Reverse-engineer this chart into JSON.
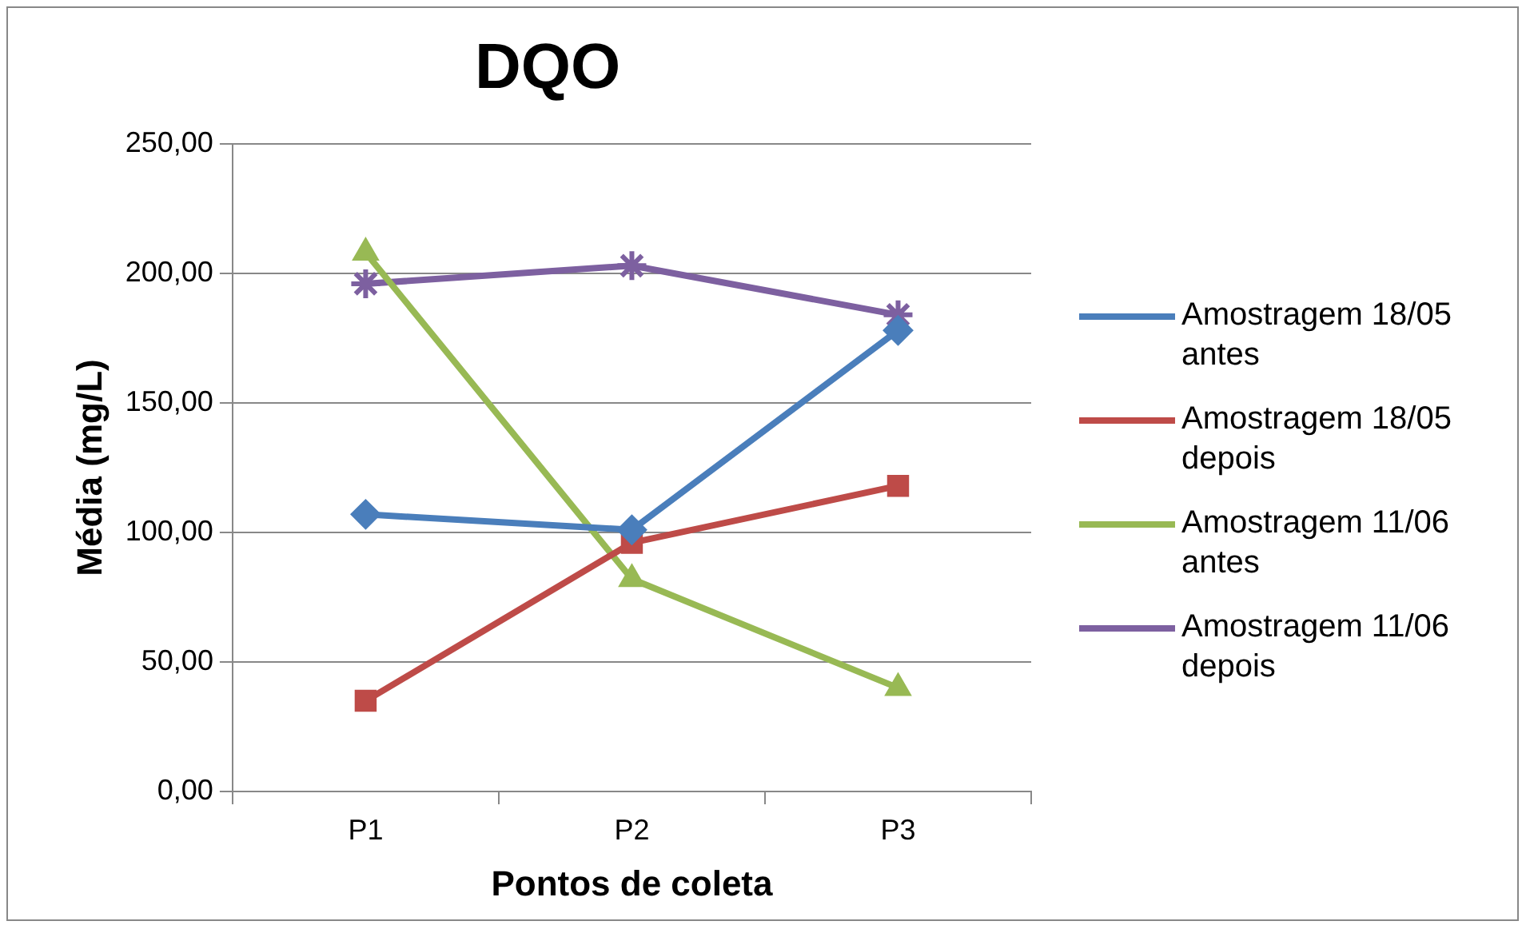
{
  "chart_data": {
    "type": "line",
    "title": "DQO",
    "xlabel": "Pontos de coleta",
    "ylabel": "Média (mg/L)",
    "categories": [
      "P1",
      "P2",
      "P3"
    ],
    "series": [
      {
        "name": "Amostragem 18/05 antes",
        "color": "#4a7ebb",
        "marker": "diamond",
        "values": [
          107,
          101,
          178
        ]
      },
      {
        "name": "Amostragem 18/05 depois",
        "color": "#be4b48",
        "marker": "square",
        "values": [
          35,
          96,
          118
        ]
      },
      {
        "name": "Amostragem 11/06 antes",
        "color": "#98b954",
        "marker": "triangle",
        "values": [
          208,
          82,
          40
        ]
      },
      {
        "name": "Amostragem 11/06 depois",
        "color": "#7d60a0",
        "marker": "cross",
        "values": [
          196,
          203,
          184
        ]
      }
    ],
    "ylim": [
      0,
      250
    ],
    "yticks": [
      {
        "value": 0,
        "label": "0,00"
      },
      {
        "value": 50,
        "label": "50,00"
      },
      {
        "value": 100,
        "label": "100,00"
      },
      {
        "value": 150,
        "label": "150,00"
      },
      {
        "value": 200,
        "label": "200,00"
      },
      {
        "value": 250,
        "label": "250,00"
      }
    ],
    "grid": "y",
    "legend": "right",
    "line_style": "solid"
  }
}
